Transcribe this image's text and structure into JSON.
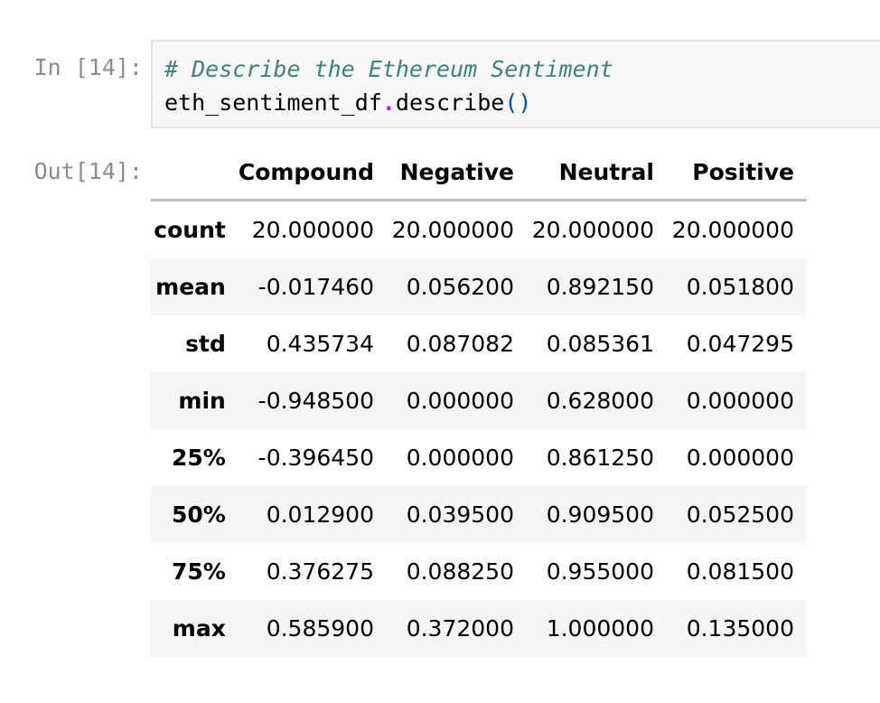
{
  "input_cell": {
    "prompt": "In [14]:",
    "comment": "# Describe the Ethereum Sentiment",
    "code_var": "eth_sentiment_df",
    "code_dot": ".",
    "code_method": "describe",
    "code_parens": "()"
  },
  "output_cell": {
    "prompt": "Out[14]:",
    "columns": [
      "",
      "Compound",
      "Negative",
      "Neutral",
      "Positive"
    ],
    "rows": [
      {
        "label": "count",
        "values": [
          "20.000000",
          "20.000000",
          "20.000000",
          "20.000000"
        ]
      },
      {
        "label": "mean",
        "values": [
          "-0.017460",
          "0.056200",
          "0.892150",
          "0.051800"
        ]
      },
      {
        "label": "std",
        "values": [
          "0.435734",
          "0.087082",
          "0.085361",
          "0.047295"
        ]
      },
      {
        "label": "min",
        "values": [
          "-0.948500",
          "0.000000",
          "0.628000",
          "0.000000"
        ]
      },
      {
        "label": "25%",
        "values": [
          "-0.396450",
          "0.000000",
          "0.861250",
          "0.000000"
        ]
      },
      {
        "label": "50%",
        "values": [
          "0.012900",
          "0.039500",
          "0.909500",
          "0.052500"
        ]
      },
      {
        "label": "75%",
        "values": [
          "0.376275",
          "0.088250",
          "0.955000",
          "0.081500"
        ]
      },
      {
        "label": "max",
        "values": [
          "0.585900",
          "0.372000",
          "1.000000",
          "0.135000"
        ]
      }
    ]
  },
  "colors": {
    "comment": "#408080",
    "prompt": "#8c8c8c",
    "cell_background": "#f7f7f7",
    "dot": "#aa22ff",
    "paren": "#0055aa"
  }
}
